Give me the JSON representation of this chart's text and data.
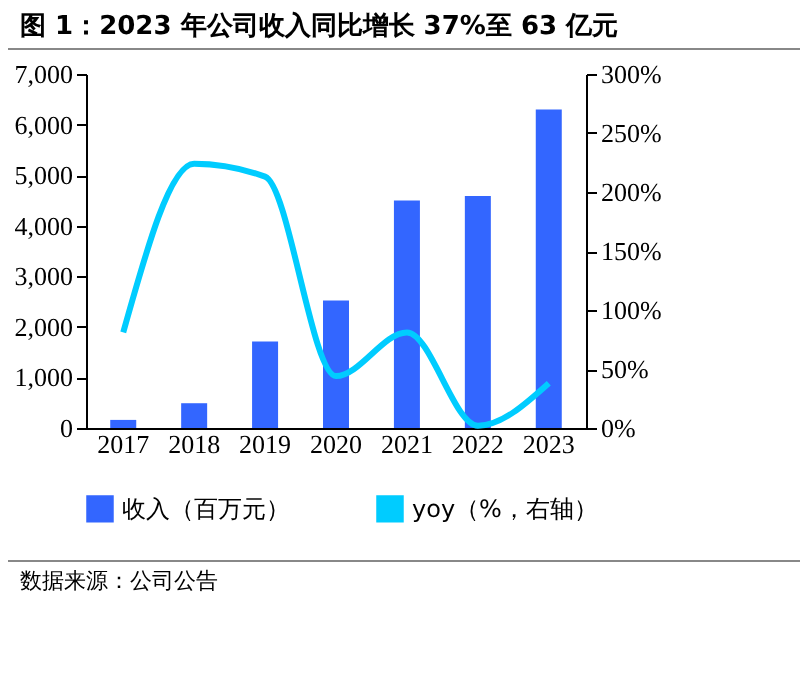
{
  "chart_data": {
    "type": "bar",
    "title": "图 1：2023 年公司收入同比增长 37%至 63 亿元",
    "categories": [
      "2017",
      "2018",
      "2019",
      "2020",
      "2021",
      "2022",
      "2023"
    ],
    "series": [
      {
        "name": "收入（百万元）",
        "color": "#3366ff",
        "values": [
          160,
          490,
          1710,
          2520,
          4500,
          4590,
          6300
        ]
      },
      {
        "name": "yoy（%，右轴）",
        "type": "line",
        "axis": "y2",
        "color": "#00ccff",
        "values": [
          81,
          224,
          213,
          44,
          81,
          2,
          38
        ]
      }
    ],
    "ylim": [
      0,
      7000
    ],
    "yticks": [
      {
        "value": 0,
        "label": "0"
      },
      {
        "value": 1000,
        "label": "1,000"
      },
      {
        "value": 2000,
        "label": "2,000"
      },
      {
        "value": 3000,
        "label": "3,000"
      },
      {
        "value": 4000,
        "label": "4,000"
      },
      {
        "value": 5000,
        "label": "5,000"
      },
      {
        "value": 6000,
        "label": "6,000"
      },
      {
        "value": 7000,
        "label": "7,000"
      }
    ],
    "y2lim": [
      0,
      300
    ],
    "y2ticks": [
      {
        "value": 0,
        "label": "0%"
      },
      {
        "value": 50,
        "label": "50%"
      },
      {
        "value": 100,
        "label": "100%"
      },
      {
        "value": 150,
        "label": "150%"
      },
      {
        "value": 200,
        "label": "200%"
      },
      {
        "value": 250,
        "label": "250%"
      },
      {
        "value": 300,
        "label": "300%"
      }
    ],
    "legend": "bottom",
    "grid": false,
    "annotations": [
      "数据来源：公司公告"
    ]
  }
}
